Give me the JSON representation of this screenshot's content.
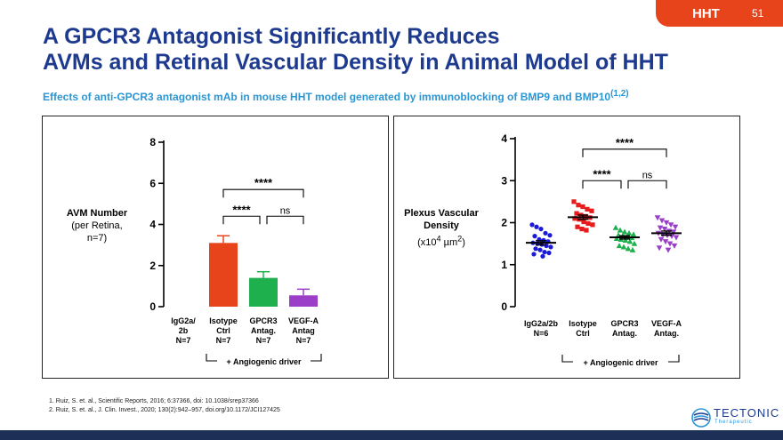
{
  "header": {
    "badge": "HHT",
    "page_number": "51",
    "title_line1": "A GPCR3 Antagonist Significantly Reduces",
    "title_line2": "AVMs and Retinal Vascular Density in Animal Model of HHT",
    "subtitle": "Effects of anti-GPCR3 antagonist mAb in mouse HHT model generated by immunoblocking of BMP9 and BMP10",
    "subtitle_ref": "(1,2)"
  },
  "colors": {
    "orange": "#e8441c",
    "green": "#1eb04c",
    "purple": "#9b3fc8",
    "blue": "#1a1ad8",
    "red": "#e81c1c",
    "navy": "#1d3a8f",
    "cyan": "#2a96d4"
  },
  "left_panel": {
    "ylabel_line1": "AVM Number",
    "ylabel_line2": "(per Retina,",
    "ylabel_line3": "n=7)"
  },
  "right_panel": {
    "ylabel_line1": "Plexus Vascular",
    "ylabel_line2": "Density",
    "ylabel_line3_pre": "(x10",
    "ylabel_line3_sup1": "4",
    "ylabel_line3_mid": " µm",
    "ylabel_line3_sup2": "2",
    "ylabel_line3_post": ")"
  },
  "chart_data": [
    {
      "type": "bar",
      "ylim": [
        0,
        8
      ],
      "yticks": [
        "0",
        "2",
        "4",
        "6",
        "8"
      ],
      "categories": [
        [
          "IgG2a/",
          "2b",
          "N=7"
        ],
        [
          "Isotype",
          "Ctrl",
          "N=7"
        ],
        [
          "GPCR3",
          "Antag.",
          "N=7"
        ],
        [
          "VEGF-A",
          "Antag",
          "N=7"
        ]
      ],
      "values": [
        0,
        3.1,
        1.4,
        0.55
      ],
      "errors": [
        0,
        0.35,
        0.3,
        0.3
      ],
      "bar_colors": [
        "#e8441c",
        "#e8441c",
        "#1eb04c",
        "#9b3fc8"
      ],
      "annotations": [
        {
          "from": 1,
          "to": 3,
          "label": "****",
          "y": 5.7
        },
        {
          "from": 1,
          "to": 2,
          "label": "****",
          "y": 4.4
        },
        {
          "from": 2,
          "to": 3,
          "label": "ns",
          "y": 4.4
        }
      ],
      "bracket_label": "+ Angiogenic driver"
    },
    {
      "type": "scatter",
      "ylim": [
        0,
        4
      ],
      "yticks": [
        "0",
        "1",
        "2",
        "3",
        "4"
      ],
      "categories": [
        [
          "IgG2a/2b",
          "N=6"
        ],
        [
          "Isotype",
          "Ctrl"
        ],
        [
          "GPCR3",
          "Antag."
        ],
        [
          "VEGF-A",
          "Antag."
        ]
      ],
      "series": [
        {
          "marker": "circle",
          "color": "#1a1ad8",
          "mean": 1.52,
          "sem": 0.05,
          "values": [
            1.95,
            1.9,
            1.85,
            1.75,
            1.7,
            1.68,
            1.6,
            1.58,
            1.55,
            1.52,
            1.5,
            1.48,
            1.45,
            1.42,
            1.38,
            1.35,
            1.3,
            1.28,
            1.25,
            1.2
          ]
        },
        {
          "marker": "square",
          "color": "#e81c1c",
          "mean": 2.13,
          "sem": 0.05,
          "values": [
            2.5,
            2.42,
            2.38,
            2.32,
            2.28,
            2.22,
            2.18,
            2.15,
            2.12,
            2.1,
            2.08,
            2.02,
            1.98,
            1.95,
            1.9,
            1.85,
            1.82
          ]
        },
        {
          "marker": "triangle-up",
          "color": "#1eb04c",
          "mean": 1.65,
          "sem": 0.04,
          "values": [
            1.88,
            1.82,
            1.78,
            1.75,
            1.72,
            1.7,
            1.68,
            1.66,
            1.64,
            1.62,
            1.6,
            1.58,
            1.55,
            1.5,
            1.45,
            1.42,
            1.38,
            1.35
          ]
        },
        {
          "marker": "triangle-down",
          "color": "#9b3fc8",
          "mean": 1.75,
          "sem": 0.05,
          "values": [
            2.12,
            2.05,
            2.0,
            1.95,
            1.9,
            1.88,
            1.85,
            1.8,
            1.78,
            1.75,
            1.72,
            1.7,
            1.68,
            1.65,
            1.6,
            1.55,
            1.5,
            1.45,
            1.4,
            1.35
          ]
        }
      ],
      "annotations": [
        {
          "from": 1,
          "to": 3,
          "label": "****",
          "y": 3.75
        },
        {
          "from": 1,
          "to": 2,
          "label": "****",
          "y": 3.0
        },
        {
          "from": 2,
          "to": 3,
          "label": "ns",
          "y": 3.0
        }
      ],
      "bracket_label": "+ Angiogenic driver"
    }
  ],
  "references": [
    "1. Ruiz, S. et. al., Scientific Reports, 2016; 6:37366, doi: 10.1038/srep37366",
    "2. Ruiz, S. et. al., J. Clin. Invest., 2020; 130(2):942–957, doi.org/10.1172/JCI127425"
  ],
  "logo": {
    "name": "TECTONIC",
    "tagline": "Therapeutic"
  }
}
